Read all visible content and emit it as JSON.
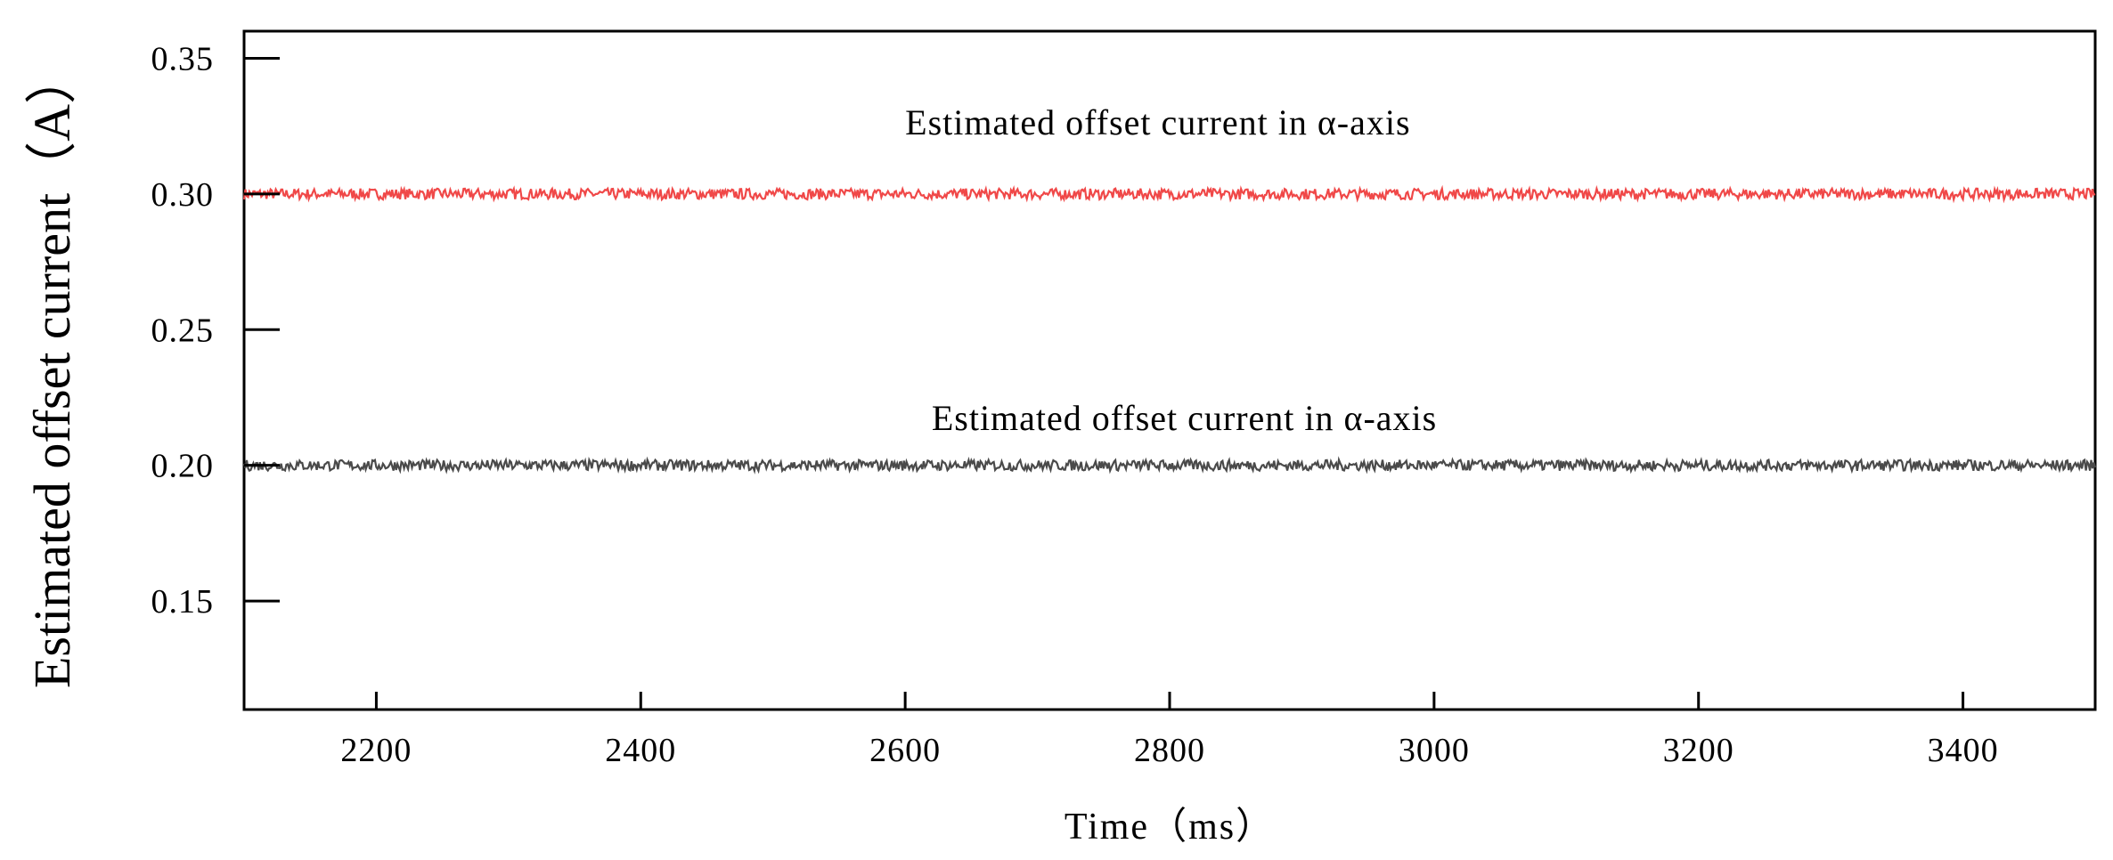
{
  "chart_data": {
    "type": "line",
    "title": "",
    "xlabel": "Time（ms）",
    "ylabel": "Estimated offset current（A）",
    "xlim": [
      2100,
      3500
    ],
    "ylim": [
      0.11,
      0.36
    ],
    "x_ticks": [
      2200,
      2400,
      2600,
      2800,
      3000,
      3200,
      3400
    ],
    "x_tick_labels": [
      "2200",
      "2400",
      "2600",
      "2800",
      "3000",
      "3200",
      "3400"
    ],
    "y_ticks": [
      0.15,
      0.2,
      0.25,
      0.3,
      0.35
    ],
    "y_tick_labels": [
      "0.15",
      "0.20",
      "0.25",
      "0.30",
      "0.35"
    ],
    "grid": false,
    "series": [
      {
        "name": "Estimated offset current in α-axis",
        "color": "#f04848",
        "x": [
          2100,
          3500
        ],
        "values": [
          0.3,
          0.3
        ],
        "noise_amplitude": 0.002
      },
      {
        "name": "Estimated offset current in α-axis",
        "color": "#4a4a4a",
        "x": [
          2100,
          3500
        ],
        "values": [
          0.2,
          0.2
        ],
        "noise_amplitude": 0.002
      }
    ],
    "annotations": [
      {
        "text": "Estimated offset current in α-axis",
        "x": 2600,
        "y": 0.322
      },
      {
        "text": "Estimated offset current in α-axis",
        "x": 2620,
        "y": 0.213
      }
    ]
  }
}
